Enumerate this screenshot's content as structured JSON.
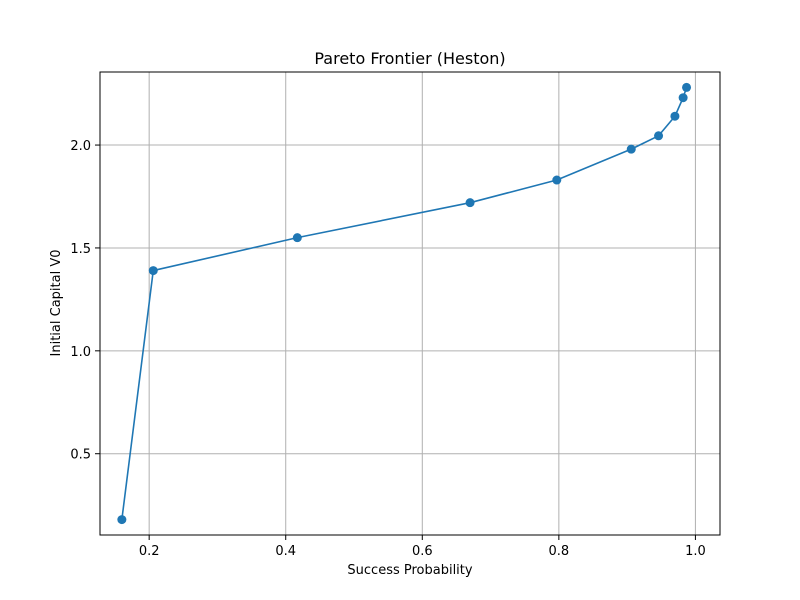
{
  "chart_data": {
    "type": "line",
    "title": "Pareto Frontier (Heston)",
    "xlabel": "Success Probability",
    "ylabel": "Initial Capital V0",
    "xlim": [
      0.128,
      1.036
    ],
    "ylim": [
      0.105,
      2.355
    ],
    "xticks": [
      0.2,
      0.4,
      0.6,
      0.8,
      1.0
    ],
    "xtick_labels": [
      "0.2",
      "0.4",
      "0.6",
      "0.8",
      "1.0"
    ],
    "yticks": [
      0.5,
      1.0,
      1.5,
      2.0
    ],
    "ytick_labels": [
      "0.5",
      "1.0",
      "1.5",
      "2.0"
    ],
    "grid": true,
    "series": [
      {
        "color": "#1f77b4",
        "marker": "circle",
        "x": [
          0.16,
          0.206,
          0.417,
          0.67,
          0.797,
          0.906,
          0.946,
          0.97,
          0.982,
          0.987
        ],
        "y": [
          0.18,
          1.39,
          1.55,
          1.72,
          1.83,
          1.98,
          2.045,
          2.14,
          2.23,
          2.28
        ]
      }
    ]
  }
}
